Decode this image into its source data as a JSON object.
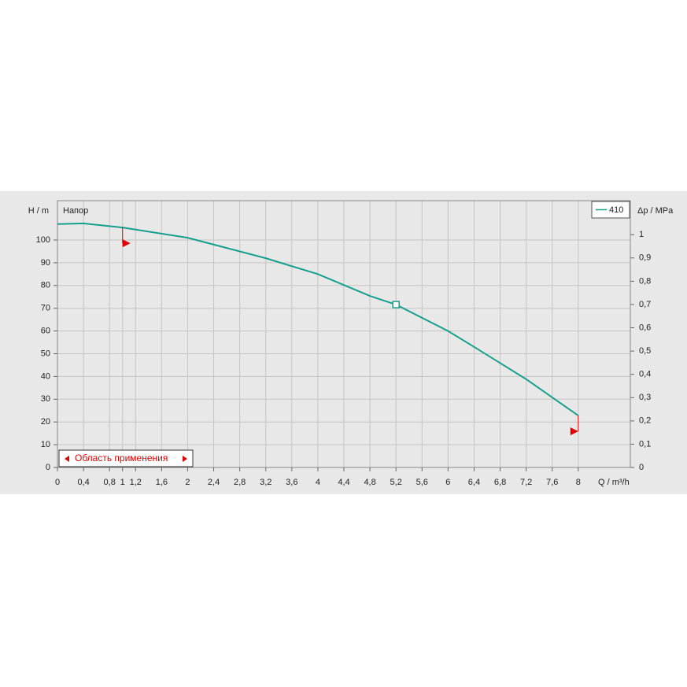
{
  "chart_data": {
    "type": "line",
    "y_title": "H / m",
    "y2_title": "Δp / MPa",
    "x_title": "Q / m³/h",
    "curve_label": "Напор",
    "range_label": "Область применения",
    "series": [
      {
        "name": "410",
        "color": "#16a08c",
        "x": [
          0,
          0.4,
          1,
          2,
          3.2,
          4,
          4.8,
          5.2,
          6,
          6.4,
          7.2,
          8
        ],
        "values": [
          107,
          107.3,
          105.5,
          101,
          92,
          85,
          75.4,
          71.6,
          60,
          53,
          38.8,
          22.8
        ]
      }
    ],
    "operating_point": {
      "x": 5.2,
      "y": 71.6
    },
    "application_range": [
      1,
      8
    ],
    "xlim": [
      0,
      8.8
    ],
    "xticks": [
      0,
      {
        "value": 0.4,
        "label": "0,4"
      },
      {
        "value": 0.8,
        "label": "0,8"
      },
      1,
      {
        "value": 1.2,
        "label": "1,2"
      },
      {
        "value": 1.6,
        "label": "1,6"
      },
      2,
      {
        "value": 2.4,
        "label": "2,4"
      },
      {
        "value": 2.8,
        "label": "2,8"
      },
      {
        "value": 3.2,
        "label": "3,2"
      },
      {
        "value": 3.6,
        "label": "3,6"
      },
      4,
      {
        "value": 4.4,
        "label": "4,4"
      },
      {
        "value": 4.8,
        "label": "4,8"
      },
      {
        "value": 5.2,
        "label": "5,2"
      },
      {
        "value": 5.6,
        "label": "5,6"
      },
      6,
      {
        "value": 6.4,
        "label": "6,4"
      },
      {
        "value": 6.8,
        "label": "6,8"
      },
      {
        "value": 7.2,
        "label": "7,2"
      },
      {
        "value": 7.6,
        "label": "7,6"
      },
      8
    ],
    "ylim": [
      0,
      117.3
    ],
    "yticks": [
      0,
      10,
      20,
      30,
      40,
      50,
      60,
      70,
      80,
      90,
      100
    ],
    "y2lim": [
      0,
      1.146
    ],
    "y2ticks": [
      0,
      {
        "value": 0.1,
        "label": "0,1"
      },
      {
        "value": 0.2,
        "label": "0,2"
      },
      {
        "value": 0.3,
        "label": "0,3"
      },
      {
        "value": 0.4,
        "label": "0,4"
      },
      {
        "value": 0.5,
        "label": "0,5"
      },
      {
        "value": 0.6,
        "label": "0,6"
      },
      {
        "value": 0.7,
        "label": "0,7"
      },
      {
        "value": 0.8,
        "label": "0,8"
      },
      {
        "value": 0.9,
        "label": "0,9"
      },
      1
    ],
    "grid": true
  }
}
